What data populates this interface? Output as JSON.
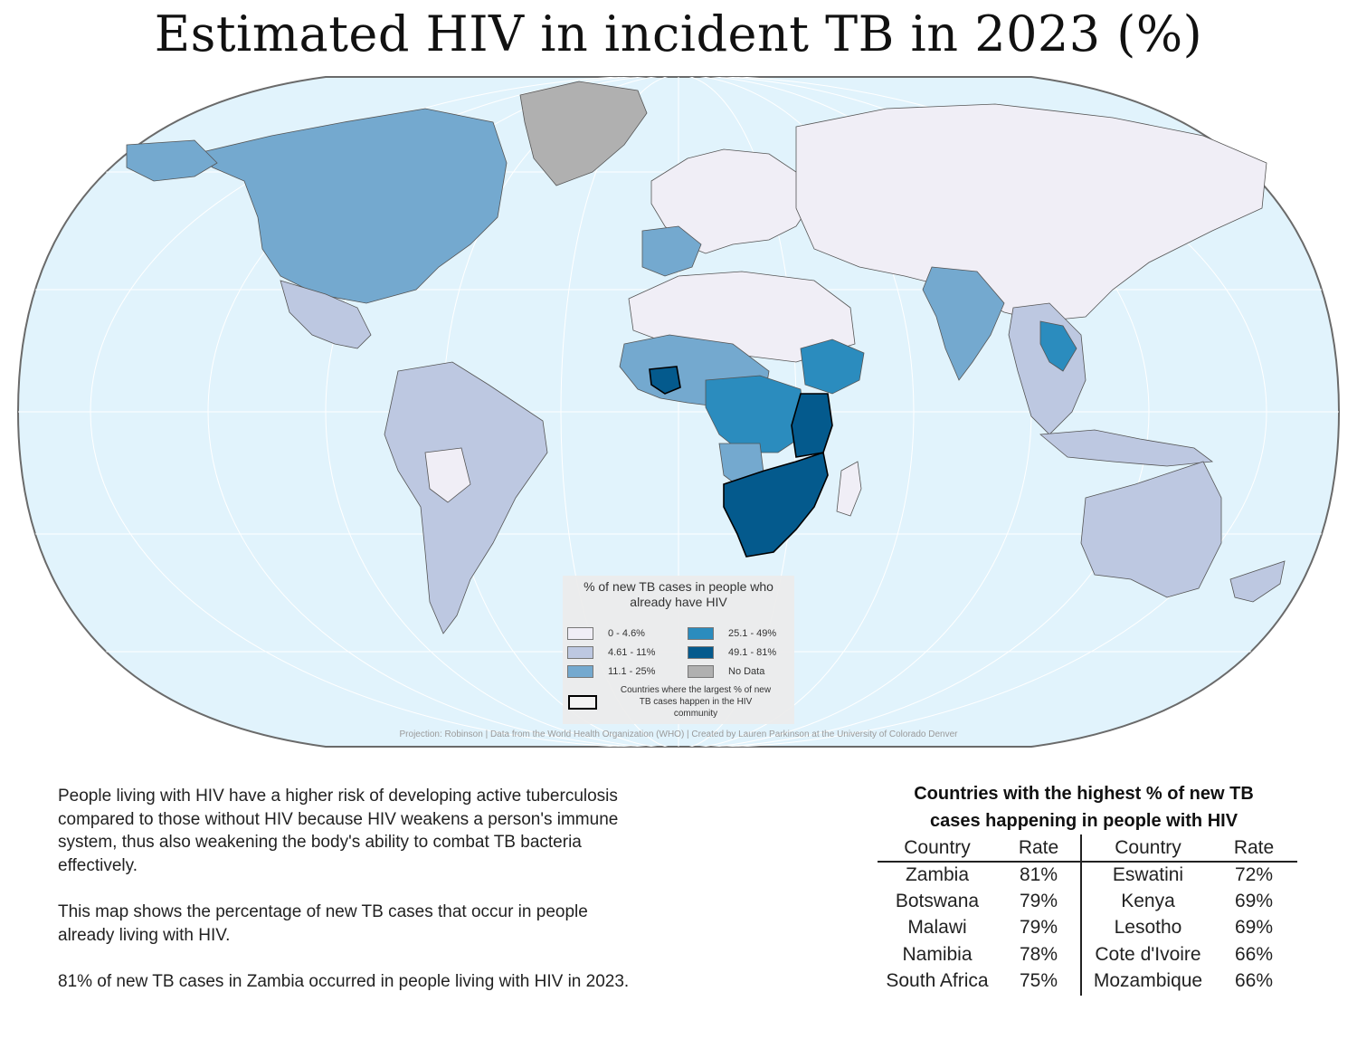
{
  "title": "Estimated HIV in incident TB in 2023 (%)",
  "legend": {
    "title_line1": "% of new TB cases in people who",
    "title_line2": "already have HIV",
    "items": [
      {
        "label": "0 - 4.6%",
        "color": "#f0eef6"
      },
      {
        "label": "4.61 - 11%",
        "color": "#bdc8e1"
      },
      {
        "label": "11.1 - 25%",
        "color": "#74a9cf"
      },
      {
        "label": "25.1 - 49%",
        "color": "#2b8cbe"
      },
      {
        "label": "49.1 - 81%",
        "color": "#045a8d"
      },
      {
        "label": "No Data",
        "color": "#b0b0b0"
      }
    ],
    "outline_label_line1": "Countries where the largest % of new",
    "outline_label_line2": "TB cases happen in the HIV",
    "outline_label_line3": "community"
  },
  "credit": "Projection: Robinson | Data from the World Health Organization (WHO) | Created by Lauren Parkinson at the University of Colorado Denver",
  "description": {
    "para1": [
      "People living with HIV have a higher risk of developing active tuberculosis",
      "compared to those without HIV because HIV weakens a person's immune",
      "system, thus also weakening the body's ability to combat TB bacteria",
      "effectively."
    ],
    "para2": [
      "This map shows the percentage of new TB cases that occur in people",
      "already living with HIV."
    ],
    "para3": "81% of new TB cases in Zambia occurred in people living with HIV in 2023."
  },
  "table": {
    "title_line1": "Countries with the highest % of new TB",
    "title_line2": "cases happening in people with HIV",
    "headers": [
      "Country",
      "Rate",
      "Country",
      "Rate"
    ],
    "rows": [
      [
        "Zambia",
        "81%",
        "Eswatini",
        "72%"
      ],
      [
        "Botswana",
        "79%",
        "Kenya",
        "69%"
      ],
      [
        "Malawi",
        "79%",
        "Lesotho",
        "69%"
      ],
      [
        "Namibia",
        "78%",
        "Cote d'Ivoire",
        "66%"
      ],
      [
        "South Africa",
        "75%",
        "Mozambique",
        "66%"
      ]
    ]
  }
}
